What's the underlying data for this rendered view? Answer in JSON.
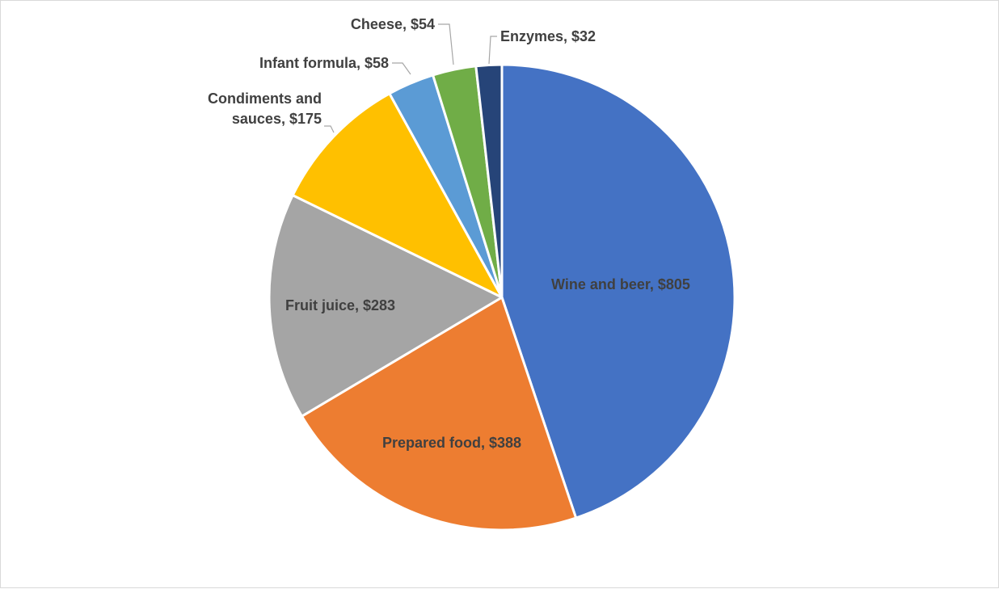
{
  "chart_data": {
    "type": "pie",
    "title": "",
    "start_angle_deg": 0,
    "direction": "clockwise",
    "legend": "none",
    "slices": [
      {
        "category": "Wine and beer",
        "value": 805,
        "label": "Wine and beer, $805",
        "color": "#4472C4"
      },
      {
        "category": "Prepared food",
        "value": 388,
        "label": "Prepared food, $388",
        "color": "#ED7D31"
      },
      {
        "category": "Fruit juice",
        "value": 283,
        "label": "Fruit juice, $283",
        "color": "#A5A5A5"
      },
      {
        "category": "Condiments and sauces",
        "value": 175,
        "label": "Condiments and sauces, $175",
        "label_lines": [
          "Condiments and",
          "sauces, $175"
        ],
        "color": "#FFC000"
      },
      {
        "category": "Infant formula",
        "value": 58,
        "label": "Infant formula, $58",
        "color": "#5B9BD5"
      },
      {
        "category": "Cheese",
        "value": 54,
        "label": "Cheese, $54",
        "color": "#70AD47"
      },
      {
        "category": "Enzymes",
        "value": 32,
        "label": "Enzymes, $32",
        "color": "#264478"
      }
    ]
  }
}
